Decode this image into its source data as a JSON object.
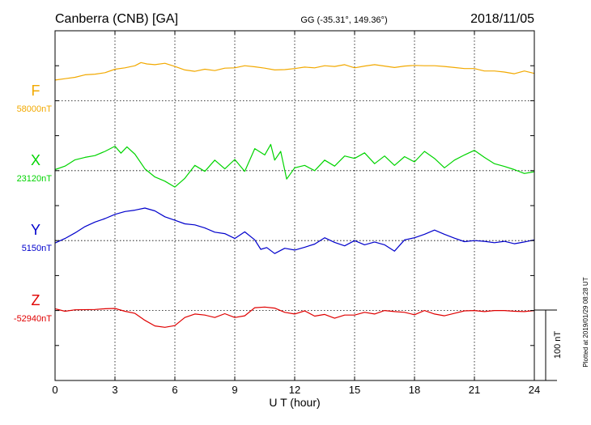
{
  "header": {
    "station": "Canberra (CNB)  [GA]",
    "coords": "GG (-35.31°, 149.36°)",
    "date": "2018/11/05"
  },
  "plotted_note": "Plotted at 2019/01/29 08:28 UT",
  "scale_label": "100 nT",
  "chart_data": {
    "type": "line",
    "xlabel": "U T (hour)",
    "xlim": [
      0,
      24
    ],
    "xticks": [
      0,
      3,
      6,
      9,
      12,
      15,
      18,
      21,
      24
    ],
    "units_per_division": 100,
    "grid": true,
    "series": [
      {
        "name": "F",
        "baseline_label": "58000nT",
        "color": "#f2a900",
        "baseline": 58000,
        "points": [
          [
            0,
            58059
          ],
          [
            0.5,
            58063
          ],
          [
            1,
            58067
          ],
          [
            1.5,
            58074
          ],
          [
            2,
            58076
          ],
          [
            2.5,
            58080
          ],
          [
            3,
            58090
          ],
          [
            3.5,
            58094
          ],
          [
            4,
            58100
          ],
          [
            4.3,
            58109
          ],
          [
            4.6,
            58105
          ],
          [
            5,
            58103
          ],
          [
            5.5,
            58107
          ],
          [
            6,
            58098
          ],
          [
            6.5,
            58088
          ],
          [
            7,
            58084
          ],
          [
            7.5,
            58090
          ],
          [
            8,
            58086
          ],
          [
            8.5,
            58093
          ],
          [
            9,
            58094
          ],
          [
            9.5,
            58100
          ],
          [
            10,
            58097
          ],
          [
            10.5,
            58093
          ],
          [
            11,
            58088
          ],
          [
            11.5,
            58089
          ],
          [
            12,
            58092
          ],
          [
            12.5,
            58096
          ],
          [
            13,
            58094
          ],
          [
            13.5,
            58100
          ],
          [
            14,
            58098
          ],
          [
            14.5,
            58103
          ],
          [
            15,
            58094
          ],
          [
            15.5,
            58099
          ],
          [
            16,
            58103
          ],
          [
            16.5,
            58099
          ],
          [
            17,
            58095
          ],
          [
            17.5,
            58099
          ],
          [
            18,
            58101
          ],
          [
            18.5,
            58100
          ],
          [
            19,
            58100
          ],
          [
            19.5,
            58098
          ],
          [
            20,
            58095
          ],
          [
            20.5,
            58092
          ],
          [
            21,
            58092
          ],
          [
            21.5,
            58085
          ],
          [
            22,
            58085
          ],
          [
            22.5,
            58082
          ],
          [
            23,
            58077
          ],
          [
            23.5,
            58085
          ],
          [
            24,
            58078
          ]
        ]
      },
      {
        "name": "X",
        "baseline_label": "23120nT",
        "color": "#00d400",
        "baseline": 23120,
        "points": [
          [
            0,
            23123
          ],
          [
            0.5,
            23133
          ],
          [
            1,
            23151
          ],
          [
            1.5,
            23158
          ],
          [
            2,
            23163
          ],
          [
            2.5,
            23175
          ],
          [
            3,
            23190
          ],
          [
            3.3,
            23170
          ],
          [
            3.6,
            23188
          ],
          [
            4,
            23167
          ],
          [
            4.5,
            23125
          ],
          [
            5,
            23102
          ],
          [
            5.5,
            23090
          ],
          [
            6,
            23073
          ],
          [
            6.5,
            23098
          ],
          [
            7,
            23135
          ],
          [
            7.5,
            23118
          ],
          [
            8,
            23150
          ],
          [
            8.5,
            23125
          ],
          [
            9,
            23152
          ],
          [
            9.5,
            23118
          ],
          [
            10,
            23183
          ],
          [
            10.5,
            23165
          ],
          [
            10.8,
            23195
          ],
          [
            11,
            23150
          ],
          [
            11.3,
            23175
          ],
          [
            11.6,
            23096
          ],
          [
            12,
            23128
          ],
          [
            12.5,
            23135
          ],
          [
            13,
            23120
          ],
          [
            13.5,
            23150
          ],
          [
            14,
            23133
          ],
          [
            14.5,
            23162
          ],
          [
            15,
            23155
          ],
          [
            15.5,
            23171
          ],
          [
            16,
            23140
          ],
          [
            16.5,
            23162
          ],
          [
            17,
            23135
          ],
          [
            17.5,
            23160
          ],
          [
            18,
            23145
          ],
          [
            18.5,
            23175
          ],
          [
            19,
            23155
          ],
          [
            19.5,
            23128
          ],
          [
            20,
            23150
          ],
          [
            20.5,
            23165
          ],
          [
            21,
            23178
          ],
          [
            21.5,
            23158
          ],
          [
            22,
            23140
          ],
          [
            22.5,
            23132
          ],
          [
            23,
            23123
          ],
          [
            23.5,
            23112
          ],
          [
            24,
            23117
          ]
        ]
      },
      {
        "name": "Y",
        "baseline_label": "5150nT",
        "color": "#0000cc",
        "baseline": 5150,
        "points": [
          [
            0,
            5143
          ],
          [
            0.5,
            5156
          ],
          [
            1,
            5172
          ],
          [
            1.5,
            5190
          ],
          [
            2,
            5203
          ],
          [
            2.5,
            5213
          ],
          [
            3,
            5225
          ],
          [
            3.5,
            5233
          ],
          [
            4,
            5237
          ],
          [
            4.5,
            5243
          ],
          [
            5,
            5235
          ],
          [
            5.5,
            5218
          ],
          [
            6,
            5208
          ],
          [
            6.5,
            5198
          ],
          [
            7,
            5195
          ],
          [
            7.5,
            5186
          ],
          [
            8,
            5174
          ],
          [
            8.5,
            5170
          ],
          [
            9,
            5156
          ],
          [
            9.5,
            5175
          ],
          [
            10,
            5152
          ],
          [
            10.3,
            5125
          ],
          [
            10.6,
            5130
          ],
          [
            11,
            5113
          ],
          [
            11.5,
            5128
          ],
          [
            12,
            5123
          ],
          [
            12.5,
            5131
          ],
          [
            13,
            5140
          ],
          [
            13.5,
            5158
          ],
          [
            14,
            5145
          ],
          [
            14.5,
            5135
          ],
          [
            15,
            5150
          ],
          [
            15.5,
            5138
          ],
          [
            16,
            5146
          ],
          [
            16.5,
            5138
          ],
          [
            17,
            5120
          ],
          [
            17.5,
            5152
          ],
          [
            18,
            5158
          ],
          [
            18.5,
            5168
          ],
          [
            19,
            5180
          ],
          [
            19.5,
            5168
          ],
          [
            20,
            5157
          ],
          [
            20.5,
            5147
          ],
          [
            21,
            5150
          ],
          [
            21.5,
            5148
          ],
          [
            22,
            5144
          ],
          [
            22.5,
            5148
          ],
          [
            23,
            5141
          ],
          [
            23.5,
            5146
          ],
          [
            24,
            5152
          ]
        ]
      },
      {
        "name": "Z",
        "baseline_label": "-52940nT",
        "color": "#e00000",
        "baseline": -52940,
        "points": [
          [
            0,
            -52935
          ],
          [
            0.5,
            -52942
          ],
          [
            1,
            -52938
          ],
          [
            2,
            -52937
          ],
          [
            2.5,
            -52935
          ],
          [
            3,
            -52934
          ],
          [
            3.5,
            -52942
          ],
          [
            4,
            -52948
          ],
          [
            4.5,
            -52968
          ],
          [
            5,
            -52984
          ],
          [
            5.5,
            -52988
          ],
          [
            6,
            -52983
          ],
          [
            6.5,
            -52960
          ],
          [
            7,
            -52950
          ],
          [
            7.5,
            -52953
          ],
          [
            8,
            -52960
          ],
          [
            8.5,
            -52949
          ],
          [
            9,
            -52960
          ],
          [
            9.5,
            -52955
          ],
          [
            10,
            -52932
          ],
          [
            10.5,
            -52930
          ],
          [
            11,
            -52933
          ],
          [
            11.5,
            -52945
          ],
          [
            12,
            -52950
          ],
          [
            12.5,
            -52941
          ],
          [
            13,
            -52956
          ],
          [
            13.5,
            -52951
          ],
          [
            14,
            -52962
          ],
          [
            14.5,
            -52953
          ],
          [
            15,
            -52953
          ],
          [
            15.5,
            -52945
          ],
          [
            16,
            -52950
          ],
          [
            16.5,
            -52940
          ],
          [
            17,
            -52943
          ],
          [
            17.5,
            -52945
          ],
          [
            18,
            -52952
          ],
          [
            18.5,
            -52940
          ],
          [
            19,
            -52950
          ],
          [
            19.5,
            -52955
          ],
          [
            20,
            -52948
          ],
          [
            20.5,
            -52941
          ],
          [
            21,
            -52940
          ],
          [
            21.5,
            -52943
          ],
          [
            22,
            -52940
          ],
          [
            22.5,
            -52940
          ],
          [
            23,
            -52942
          ],
          [
            23.5,
            -52943
          ],
          [
            24,
            -52940
          ]
        ]
      }
    ]
  }
}
